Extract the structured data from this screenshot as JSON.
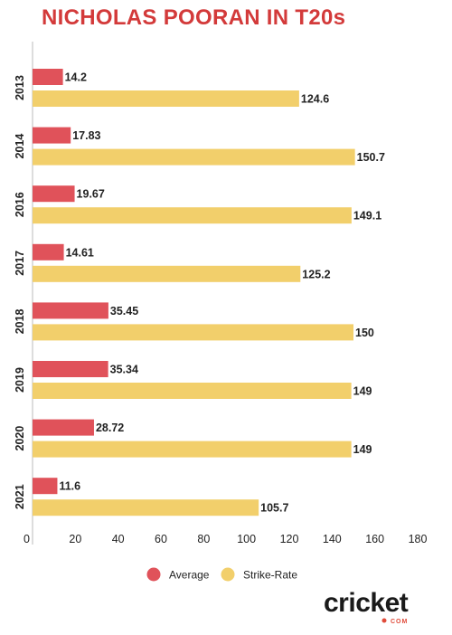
{
  "title": "NICHOLAS POORAN IN T20s",
  "colors": {
    "title": "#d33a3a",
    "average": "#e0525a",
    "strike_rate": "#f2cf6b",
    "axis": "#bbbbbb",
    "text": "#222222"
  },
  "logo": {
    "text_main": "cricket",
    "text_sub": "COM"
  },
  "chart_data": {
    "type": "bar",
    "orientation": "horizontal",
    "title": "NICHOLAS POORAN IN T20s",
    "categories": [
      "2013",
      "2014",
      "2016",
      "2017",
      "2018",
      "2019",
      "2020",
      "2021"
    ],
    "series": [
      {
        "name": "Average",
        "values": [
          14.2,
          17.83,
          19.67,
          14.61,
          35.45,
          35.34,
          28.72,
          11.6
        ]
      },
      {
        "name": "Strike-Rate",
        "values": [
          124.6,
          150.7,
          149.1,
          125.2,
          150,
          149,
          149,
          105.7
        ]
      }
    ],
    "xlim": [
      0,
      180
    ],
    "xticks": [
      0,
      20,
      40,
      60,
      80,
      100,
      120,
      140,
      160,
      180
    ],
    "grid": false,
    "legend_position": "bottom-center",
    "data_labels": true
  }
}
